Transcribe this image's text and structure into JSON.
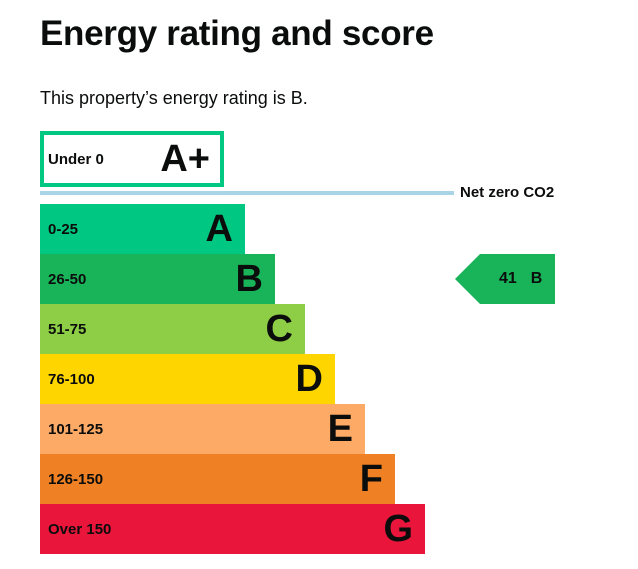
{
  "heading": "Energy rating and score",
  "summary": "This property’s energy rating is B.",
  "net_zero_label": "Net zero CO2",
  "top_band": {
    "range": "Under 0",
    "letter": "A+",
    "color": "#00c781"
  },
  "bands": [
    {
      "range": "0-25",
      "letter": "A",
      "color": "#00c781"
    },
    {
      "range": "26-50",
      "letter": "B",
      "color": "#19b459"
    },
    {
      "range": "51-75",
      "letter": "C",
      "color": "#8dce46"
    },
    {
      "range": "76-100",
      "letter": "D",
      "color": "#ffd500"
    },
    {
      "range": "101-125",
      "letter": "E",
      "color": "#fcaa65"
    },
    {
      "range": "126-150",
      "letter": "F",
      "color": "#ef8023"
    },
    {
      "range": "Over 150",
      "letter": "G",
      "color": "#e9153b"
    }
  ],
  "current_rating": {
    "score": "41",
    "letter": "B",
    "color": "#19b459"
  }
}
